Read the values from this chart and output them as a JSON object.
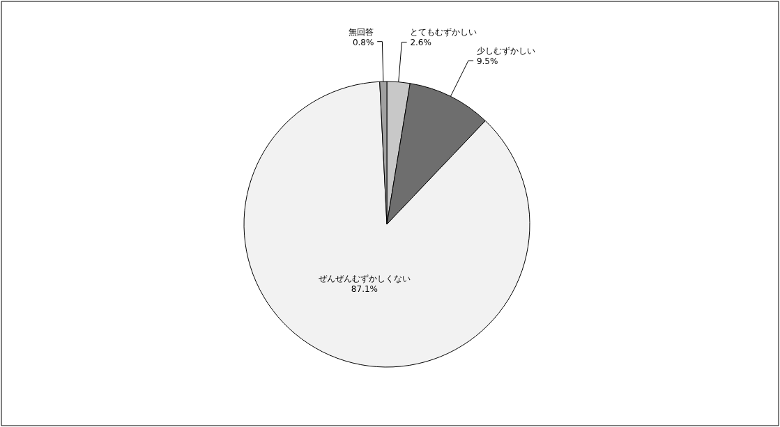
{
  "chart_data": {
    "type": "pie",
    "categories": [
      "とてもむずかしい",
      "少しむずかしい",
      "ぜんぜんむずかしくない",
      "無回答"
    ],
    "values": [
      2.6,
      9.5,
      87.1,
      0.8
    ],
    "colors": [
      "#c8c8c8",
      "#6e6e6e",
      "#f2f2f2",
      "#a0a0a0"
    ],
    "value_labels": [
      "2.6%",
      "9.5%",
      "87.1%",
      "0.8%"
    ]
  }
}
